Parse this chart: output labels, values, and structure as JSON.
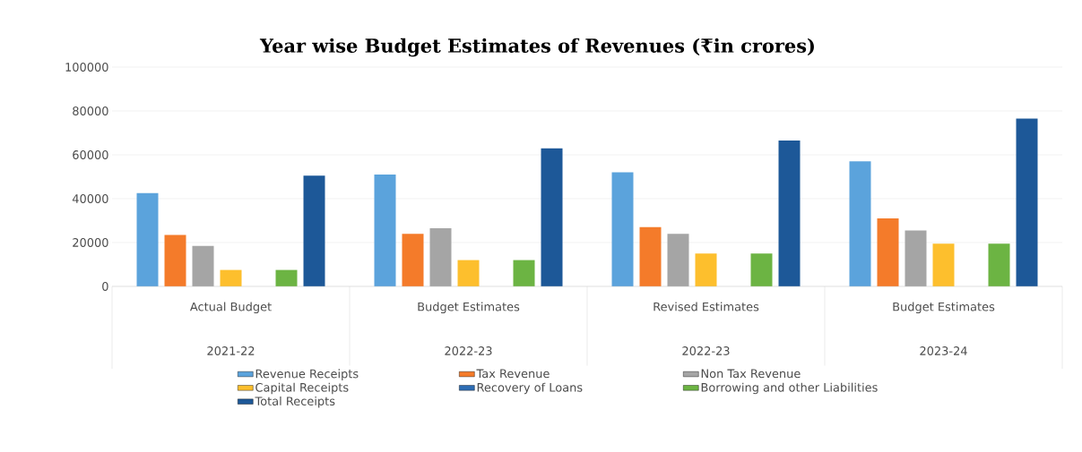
{
  "chart_data": {
    "type": "bar",
    "title": "Year wise Budget Estimates of Revenues (₹in crores)",
    "categories": [
      "Actual Budget",
      "Budget Estimates",
      "Revised Estimates",
      "Budget Estimates"
    ],
    "annotations": [
      "2021-22",
      "2022-23",
      "2022-23",
      "2023-24"
    ],
    "series": [
      {
        "name": "Revenue Receipts",
        "color": "#5ba3dc",
        "values": [
          42500,
          51000,
          52000,
          57000
        ]
      },
      {
        "name": "Tax Revenue",
        "color": "#f47b2a",
        "values": [
          23500,
          24000,
          27000,
          31000
        ]
      },
      {
        "name": "Non Tax Revenue",
        "color": "#a5a5a5",
        "values": [
          18500,
          26500,
          24000,
          25500
        ]
      },
      {
        "name": "Capital Receipts",
        "color": "#fdbf2d",
        "values": [
          7500,
          12000,
          15000,
          19500
        ]
      },
      {
        "name": "Recovery of Loans",
        "color": "#2e6db4",
        "values": [
          0,
          0,
          0,
          0
        ]
      },
      {
        "name": "Borrowing and other Liabilities",
        "color": "#6cb443",
        "values": [
          7500,
          12000,
          15000,
          19500
        ]
      },
      {
        "name": "Total Receipts",
        "color": "#1d5898",
        "values": [
          50500,
          63000,
          66500,
          76500
        ]
      }
    ],
    "ylim": [
      0,
      100000
    ],
    "yticks": [
      0,
      20000,
      40000,
      60000,
      80000,
      100000
    ],
    "grid": "y",
    "legend": "bottom"
  }
}
